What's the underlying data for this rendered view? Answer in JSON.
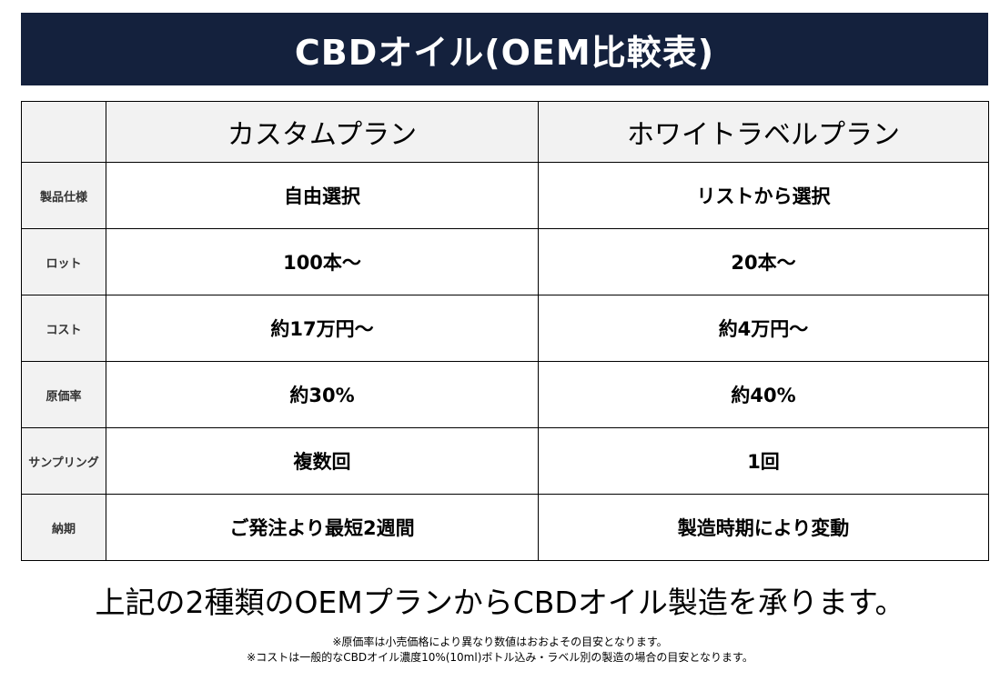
{
  "title": "CBDオイル(OEM比較表)",
  "table": {
    "headers": [
      "",
      "カスタムプラン",
      "ホワイトラベルプラン"
    ],
    "rows": [
      {
        "label": "製品仕様",
        "custom": "自由選択",
        "white": "リストから選択"
      },
      {
        "label": "ロット",
        "custom": "100本〜",
        "white": "20本〜"
      },
      {
        "label": "コスト",
        "custom": "約17万円〜",
        "white": "約4万円〜"
      },
      {
        "label": "原価率",
        "custom": "約30%",
        "white": "約40%"
      },
      {
        "label": "サンプリング",
        "custom": "複数回",
        "white": "1回"
      },
      {
        "label": "納期",
        "custom": "ご発注より最短2週間",
        "white": "製造時期により変動"
      }
    ]
  },
  "footer": {
    "main": "上記の2種類のOEMプランからCBDオイル製造を承ります。",
    "notes": [
      "※原価率は小売価格により異なり数値はおおよその目安となります。",
      "※コストは一般的なCBDオイル濃度10%(10ml)ボトル込み・ラベル別の製造の場合の目安となります。"
    ]
  },
  "colors": {
    "banner": "#14213d",
    "header_bg": "#f2f2f2"
  }
}
